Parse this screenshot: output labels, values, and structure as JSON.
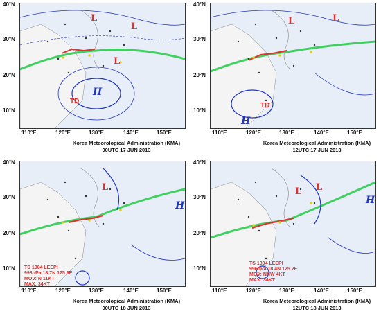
{
  "panels": [
    {
      "credit": "Korea Meteorological Administration (KMA)",
      "time": "00UTC 17 JUN 2013",
      "lat_labels": [
        "40°N",
        "30°N",
        "20°N",
        "10°N"
      ],
      "lon_labels": [
        "110°E",
        "120°E",
        "130°E",
        "140°E",
        "150°E"
      ],
      "symbols": {
        "L1": "L",
        "L2": "L",
        "L3": "L",
        "H1": "H",
        "TD": "TD"
      },
      "storm_text": ""
    },
    {
      "credit": "Korea Meteorological Administration (KMA)",
      "time": "12UTC 17 JUN 2013",
      "lat_labels": [
        "40°N",
        "30°N",
        "20°N",
        "10°N"
      ],
      "lon_labels": [
        "110°E",
        "120°E",
        "130°E",
        "140°E",
        "150°E"
      ],
      "symbols": {
        "L1": "L",
        "L2": "L",
        "H1": "H",
        "TD": "TD"
      },
      "storm_text": ""
    },
    {
      "credit": "Korea Meteorological Administration (KMA)",
      "time": "00UTC 18 JUN 2013",
      "lat_labels": [
        "40°N",
        "30°N",
        "20°N",
        "10°N"
      ],
      "lon_labels": [
        "110°E",
        "120°E",
        "130°E",
        "140°E",
        "150°E"
      ],
      "symbols": {
        "L1": "L",
        "H1": "H"
      },
      "storm_text": "TS 1304 LEEPI\n998hPa 18.7N 125.8E\nMOV: N 11KT\nMAX: 34KT"
    },
    {
      "credit": "Korea Meteorological Administration (KMA)",
      "time": "12UTC 18 JUN 2013",
      "lat_labels": [
        "40°N",
        "30°N",
        "20°N",
        "10°N"
      ],
      "lon_labels": [
        "110°E",
        "120°E",
        "130°E",
        "140°E",
        "150°E"
      ],
      "symbols": {
        "L1": "L",
        "L2": "L",
        "H1": "H"
      },
      "storm_text": "TS 1304 LEEPI\n996hPa 18.4N 125.2E\nMOV: NNW 4KT\nMAX: 34KT"
    }
  ],
  "colors": {
    "front": "#40d060",
    "isobar": "#2036c0",
    "low": "#e03030",
    "ocean": "#e8eef8"
  }
}
